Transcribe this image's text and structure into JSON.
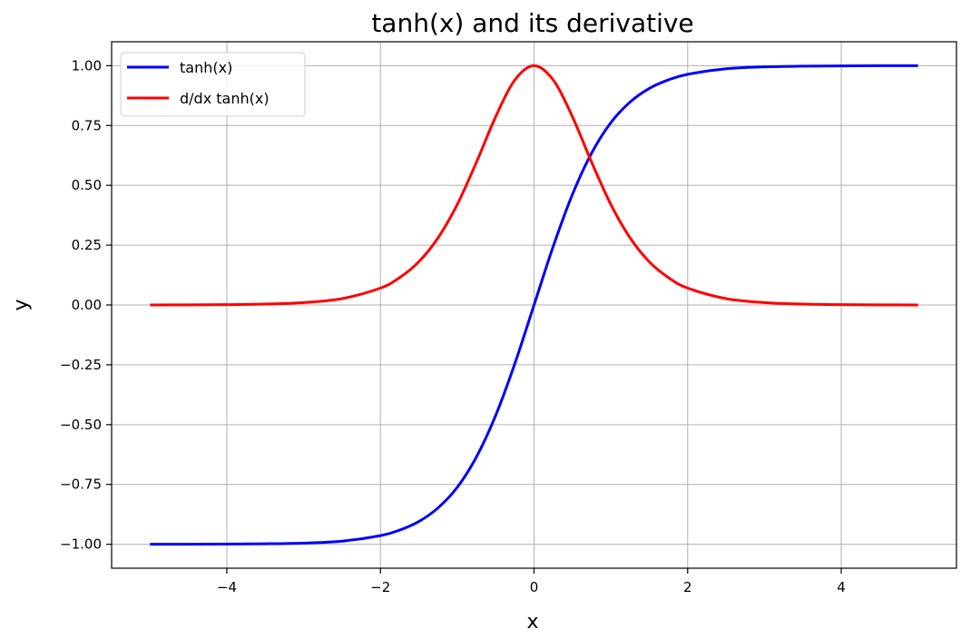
{
  "chart_data": {
    "type": "line",
    "title": "tanh(x) and its derivative",
    "xlabel": "x",
    "ylabel": "y",
    "xlim": [
      -5.5,
      5.5
    ],
    "ylim": [
      -1.1,
      1.1
    ],
    "grid": true,
    "legend_position": "top-left",
    "x_ticks": [
      -4,
      -2,
      0,
      2,
      4
    ],
    "x_tick_labels": [
      "−4",
      "−2",
      "0",
      "2",
      "4"
    ],
    "y_ticks": [
      -1.0,
      -0.75,
      -0.5,
      -0.25,
      0.0,
      0.25,
      0.5,
      0.75,
      1.0
    ],
    "y_tick_labels": [
      "−1.00",
      "−0.75",
      "−0.50",
      "−0.25",
      "0.00",
      "0.25",
      "0.50",
      "0.75",
      "1.00"
    ],
    "series": [
      {
        "name": "tanh(x)",
        "color": "#0000ff",
        "x": [
          -5.0,
          -4.5,
          -4.0,
          -3.5,
          -3.0,
          -2.5,
          -2.0,
          -1.75,
          -1.5,
          -1.25,
          -1.0,
          -0.75,
          -0.5,
          -0.25,
          0.0,
          0.25,
          0.5,
          0.75,
          1.0,
          1.25,
          1.5,
          1.75,
          2.0,
          2.5,
          3.0,
          3.5,
          4.0,
          4.5,
          5.0
        ],
        "y": [
          -1.0,
          -1.0,
          -0.999,
          -0.998,
          -0.995,
          -0.987,
          -0.964,
          -0.941,
          -0.905,
          -0.848,
          -0.762,
          -0.635,
          -0.462,
          -0.245,
          0.0,
          0.245,
          0.462,
          0.635,
          0.762,
          0.848,
          0.905,
          0.941,
          0.964,
          0.987,
          0.995,
          0.998,
          0.999,
          1.0,
          1.0
        ]
      },
      {
        "name": "d/dx tanh(x)",
        "color": "#ff0000",
        "x": [
          -5.0,
          -4.5,
          -4.0,
          -3.5,
          -3.0,
          -2.5,
          -2.0,
          -1.75,
          -1.5,
          -1.25,
          -1.0,
          -0.75,
          -0.5,
          -0.25,
          0.0,
          0.25,
          0.5,
          0.75,
          1.0,
          1.25,
          1.5,
          1.75,
          2.0,
          2.5,
          3.0,
          3.5,
          4.0,
          4.5,
          5.0
        ],
        "y": [
          0.0002,
          0.0005,
          0.0013,
          0.0036,
          0.0099,
          0.0266,
          0.0707,
          0.1144,
          0.1807,
          0.2807,
          0.42,
          0.5966,
          0.7864,
          0.9401,
          1.0,
          0.9401,
          0.7864,
          0.5966,
          0.42,
          0.2807,
          0.1807,
          0.1144,
          0.0707,
          0.0266,
          0.0099,
          0.0036,
          0.0013,
          0.0005,
          0.0002
        ]
      }
    ]
  }
}
